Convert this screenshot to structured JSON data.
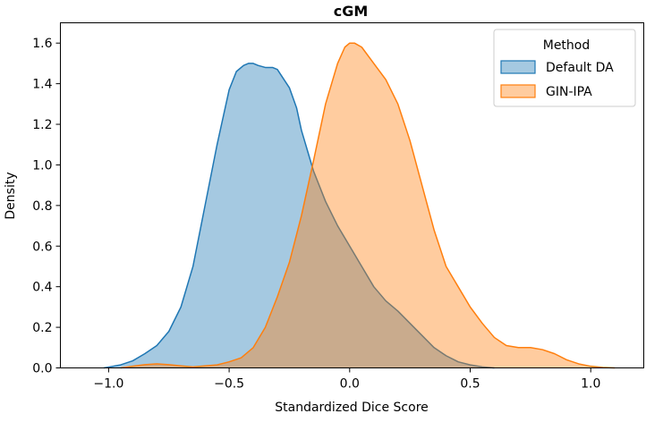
{
  "chart_data": {
    "type": "area",
    "title": "cGM",
    "xlabel": "Standardized Dice Score",
    "ylabel": "Density",
    "xlim": [
      -1.2,
      1.22
    ],
    "ylim": [
      0,
      1.7
    ],
    "xticks": [
      -1.0,
      -0.5,
      0.0,
      0.5,
      1.0
    ],
    "xtick_labels": [
      "−1.0",
      "−0.5",
      "0.0",
      "0.5",
      "1.0"
    ],
    "yticks": [
      0.0,
      0.2,
      0.4,
      0.6,
      0.8,
      1.0,
      1.2,
      1.4,
      1.6
    ],
    "ytick_labels": [
      "0.0",
      "0.2",
      "0.4",
      "0.6",
      "0.8",
      "1.0",
      "1.2",
      "1.4",
      "1.6"
    ],
    "grid": false,
    "legend": {
      "title": "Method",
      "position": "top-right"
    },
    "series": [
      {
        "name": "Default DA",
        "color": "#1f77b4",
        "x": [
          -1.02,
          -1.0,
          -0.95,
          -0.9,
          -0.85,
          -0.8,
          -0.75,
          -0.7,
          -0.65,
          -0.6,
          -0.55,
          -0.5,
          -0.47,
          -0.44,
          -0.42,
          -0.4,
          -0.38,
          -0.35,
          -0.32,
          -0.3,
          -0.25,
          -0.22,
          -0.2,
          -0.15,
          -0.1,
          -0.05,
          0.0,
          0.05,
          0.1,
          0.15,
          0.2,
          0.25,
          0.3,
          0.35,
          0.4,
          0.45,
          0.5,
          0.55,
          0.6
        ],
        "y": [
          0.0,
          0.004,
          0.015,
          0.035,
          0.07,
          0.11,
          0.18,
          0.3,
          0.5,
          0.8,
          1.1,
          1.37,
          1.46,
          1.49,
          1.5,
          1.5,
          1.49,
          1.48,
          1.48,
          1.47,
          1.38,
          1.28,
          1.17,
          0.97,
          0.82,
          0.7,
          0.6,
          0.5,
          0.4,
          0.33,
          0.28,
          0.22,
          0.16,
          0.1,
          0.06,
          0.03,
          0.015,
          0.005,
          0.0
        ]
      },
      {
        "name": "GIN-IPA",
        "color": "#ff7f0e",
        "x": [
          -0.95,
          -0.9,
          -0.85,
          -0.8,
          -0.75,
          -0.7,
          -0.65,
          -0.6,
          -0.55,
          -0.5,
          -0.45,
          -0.4,
          -0.35,
          -0.3,
          -0.25,
          -0.2,
          -0.15,
          -0.1,
          -0.05,
          -0.02,
          0.0,
          0.02,
          0.05,
          0.1,
          0.15,
          0.2,
          0.25,
          0.3,
          0.35,
          0.4,
          0.45,
          0.5,
          0.55,
          0.6,
          0.65,
          0.7,
          0.75,
          0.8,
          0.85,
          0.9,
          0.95,
          1.0,
          1.05,
          1.1
        ],
        "y": [
          0.0,
          0.008,
          0.016,
          0.02,
          0.016,
          0.01,
          0.005,
          0.01,
          0.015,
          0.03,
          0.05,
          0.1,
          0.2,
          0.35,
          0.52,
          0.75,
          1.02,
          1.3,
          1.5,
          1.58,
          1.6,
          1.6,
          1.58,
          1.5,
          1.42,
          1.3,
          1.12,
          0.9,
          0.68,
          0.5,
          0.4,
          0.3,
          0.22,
          0.15,
          0.11,
          0.1,
          0.1,
          0.09,
          0.07,
          0.04,
          0.02,
          0.008,
          0.002,
          0.0
        ]
      }
    ]
  }
}
